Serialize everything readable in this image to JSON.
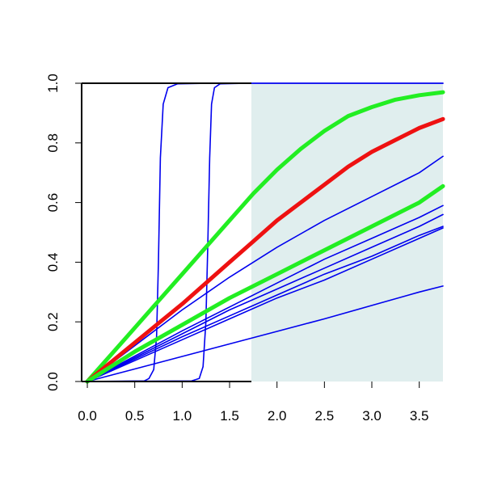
{
  "chart_data": {
    "type": "line",
    "title": "",
    "xlabel": "",
    "ylabel": "",
    "xlim": [
      -0.06,
      3.75
    ],
    "ylim": [
      0.0,
      1.0
    ],
    "x_ticks": [
      0.0,
      0.5,
      1.0,
      1.5,
      2.0,
      2.5,
      3.0,
      3.5
    ],
    "x_tick_labels": [
      "0.0",
      "0.5",
      "1.0",
      "1.5",
      "2.0",
      "2.5",
      "3.0",
      "3.5"
    ],
    "y_ticks": [
      0.0,
      0.2,
      0.4,
      0.6,
      0.8,
      1.0
    ],
    "y_tick_labels": [
      "0.0",
      "0.2",
      "0.4",
      "0.6",
      "0.8",
      "1.0"
    ],
    "grid": false,
    "legend": "none",
    "shaded_region": {
      "x_start": 1.73,
      "x_end": 3.75,
      "y_start": 0.0,
      "y_end": 1.0,
      "color": "#e0eeee"
    },
    "colors": {
      "thin": "#0000ee",
      "green": "#22ee22",
      "red": "#ee1111"
    },
    "series": [
      {
        "kind": "thick",
        "color": "#22ee22",
        "x": [
          0,
          0.25,
          0.5,
          0.75,
          1.0,
          1.25,
          1.5,
          1.75,
          2.0,
          2.25,
          2.5,
          2.75,
          3.0,
          3.25,
          3.5,
          3.75
        ],
        "y": [
          0,
          0.09,
          0.18,
          0.27,
          0.36,
          0.45,
          0.54,
          0.63,
          0.71,
          0.78,
          0.84,
          0.89,
          0.92,
          0.945,
          0.96,
          0.97
        ]
      },
      {
        "kind": "thick",
        "color": "#ee1111",
        "x": [
          0,
          0.25,
          0.5,
          0.75,
          1.0,
          1.25,
          1.5,
          1.75,
          2.0,
          2.25,
          2.5,
          2.75,
          3.0,
          3.25,
          3.5,
          3.75
        ],
        "y": [
          0,
          0.065,
          0.13,
          0.195,
          0.26,
          0.33,
          0.4,
          0.47,
          0.54,
          0.6,
          0.66,
          0.72,
          0.77,
          0.81,
          0.85,
          0.88
        ]
      },
      {
        "kind": "thick",
        "color": "#22ee22",
        "x": [
          0,
          0.5,
          1.0,
          1.5,
          2.0,
          2.5,
          3.0,
          3.5,
          3.75
        ],
        "y": [
          0,
          0.1,
          0.19,
          0.28,
          0.36,
          0.44,
          0.52,
          0.6,
          0.655
        ]
      },
      {
        "kind": "thin",
        "color": "#0000ee",
        "x": [
          0,
          0.5,
          1.0,
          1.5,
          2.0,
          2.5,
          3.0,
          3.5,
          3.75
        ],
        "y": [
          0,
          0.12,
          0.24,
          0.35,
          0.45,
          0.54,
          0.62,
          0.7,
          0.755
        ]
      },
      {
        "kind": "thin",
        "color": "#0000ee",
        "x": [
          0,
          0.5,
          1.0,
          1.5,
          2.0,
          2.5,
          3.0,
          3.5,
          3.75
        ],
        "y": [
          0,
          0.085,
          0.17,
          0.25,
          0.33,
          0.41,
          0.48,
          0.55,
          0.59
        ]
      },
      {
        "kind": "thin",
        "color": "#0000ee",
        "x": [
          0,
          0.5,
          1.0,
          1.5,
          2.0,
          2.5,
          3.0,
          3.5,
          3.75
        ],
        "y": [
          0,
          0.08,
          0.16,
          0.24,
          0.31,
          0.38,
          0.45,
          0.52,
          0.56
        ]
      },
      {
        "kind": "thin",
        "color": "#0000ee",
        "x": [
          0,
          0.5,
          1.0,
          1.5,
          2.0,
          2.5,
          3.0,
          3.5,
          3.75
        ],
        "y": [
          0,
          0.075,
          0.15,
          0.22,
          0.29,
          0.36,
          0.42,
          0.49,
          0.52
        ]
      },
      {
        "kind": "thin",
        "color": "#0000ee",
        "x": [
          0,
          0.5,
          1.0,
          1.5,
          2.0,
          2.5,
          3.0,
          3.5,
          3.75
        ],
        "y": [
          0,
          0.07,
          0.14,
          0.21,
          0.28,
          0.34,
          0.41,
          0.48,
          0.515
        ]
      },
      {
        "kind": "thin",
        "color": "#0000ee",
        "x": [
          0,
          0.5,
          1.0,
          1.5,
          2.0,
          2.5,
          3.0,
          3.5,
          3.75
        ],
        "y": [
          0,
          0.042,
          0.084,
          0.126,
          0.168,
          0.21,
          0.255,
          0.3,
          0.32
        ]
      },
      {
        "kind": "thin",
        "color": "#0000ee",
        "x": [
          0,
          0.6,
          0.65,
          0.7,
          0.73,
          0.75,
          0.77,
          0.8,
          0.85,
          0.95,
          1.3,
          3.75
        ],
        "y": [
          0,
          0.002,
          0.01,
          0.04,
          0.15,
          0.4,
          0.75,
          0.93,
          0.985,
          0.998,
          1.0,
          1.0
        ]
      },
      {
        "kind": "thin",
        "color": "#0000ee",
        "x": [
          0,
          1.1,
          1.18,
          1.22,
          1.25,
          1.27,
          1.29,
          1.31,
          1.34,
          1.4,
          1.7,
          3.75
        ],
        "y": [
          0,
          0.002,
          0.01,
          0.05,
          0.2,
          0.45,
          0.75,
          0.93,
          0.985,
          0.998,
          1.0,
          1.0
        ]
      }
    ]
  }
}
